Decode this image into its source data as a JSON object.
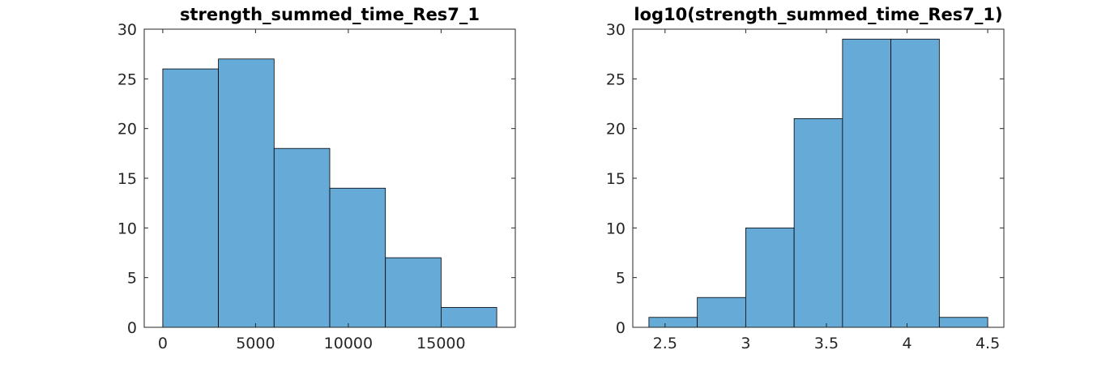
{
  "chart_data": [
    {
      "type": "bar",
      "title": "strength_summed_time_Res7_1",
      "xlabel": "",
      "ylabel": "",
      "bin_edges": [
        0,
        3000,
        6000,
        9000,
        12000,
        15000,
        18000
      ],
      "values": [
        26,
        27,
        18,
        14,
        7,
        2
      ],
      "xlim": [
        -1000,
        19000
      ],
      "ylim": [
        0,
        30
      ],
      "xticks": [
        "0",
        "5000",
        "10000",
        "15000"
      ],
      "xtick_values": [
        0,
        5000,
        10000,
        15000
      ],
      "yticks": [
        "0",
        "5",
        "10",
        "15",
        "20",
        "25",
        "30"
      ],
      "ytick_values": [
        0,
        5,
        10,
        15,
        20,
        25,
        30
      ],
      "bar_color": "#66aad7",
      "edge_color": "#000000",
      "grid": false
    },
    {
      "type": "bar",
      "title": "log10(strength_summed_time_Res7_1)",
      "xlabel": "",
      "ylabel": "",
      "bin_edges": [
        2.4,
        2.7,
        3.0,
        3.3,
        3.6,
        3.9,
        4.2,
        4.5
      ],
      "values": [
        1,
        3,
        10,
        21,
        29,
        29,
        1
      ],
      "xlim": [
        2.3,
        4.6
      ],
      "ylim": [
        0,
        30
      ],
      "xticks": [
        "2.5",
        "3",
        "3.5",
        "4",
        "4.5"
      ],
      "xtick_values": [
        2.5,
        3,
        3.5,
        4,
        4.5
      ],
      "yticks": [
        "0",
        "5",
        "10",
        "15",
        "20",
        "25",
        "30"
      ],
      "ytick_values": [
        0,
        5,
        10,
        15,
        20,
        25,
        30
      ],
      "bar_color": "#66aad7",
      "edge_color": "#000000",
      "grid": false
    }
  ]
}
